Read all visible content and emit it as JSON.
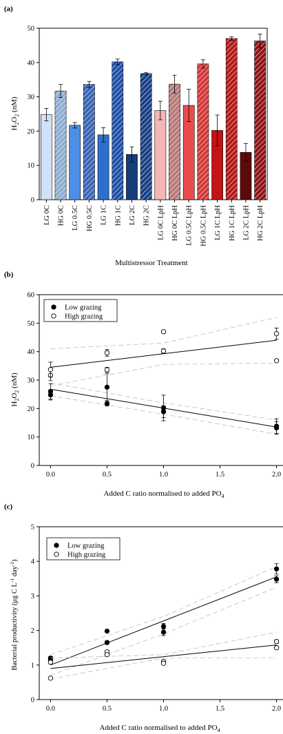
{
  "chart_data": [
    {
      "panel": "(a)",
      "type": "bar",
      "ylabel_main": "H",
      "ylabel_sub1": "2",
      "ylabel_mid": "O",
      "ylabel_sub2": "2",
      "ylabel_tail": " (nM)",
      "xlabel": "Multistressor Treatment",
      "ylim": [
        0,
        50
      ],
      "yticks": [
        "0",
        "10",
        "20",
        "30",
        "40",
        "50"
      ],
      "categories": [
        "LG 0C",
        "HG 0C",
        "LG 0.5C",
        "HG 0.5C",
        "LG 1C",
        "HG 1C",
        "LG 2C",
        "HG 2C",
        "LG 0C LpH",
        "HG 0C LpH",
        "LG 0.5C LpH",
        "HG 0.5C LpH",
        "LG 1C LpH",
        "HG 1C LpH",
        "LG 2C LpH",
        "HG 2C LpH"
      ],
      "values": [
        24.8,
        31.7,
        21.7,
        33.6,
        18.9,
        40.2,
        13.2,
        36.8,
        26.0,
        33.7,
        27.5,
        39.6,
        20.2,
        47.0,
        13.8,
        46.3
      ],
      "errors": [
        1.8,
        1.9,
        0.8,
        0.9,
        2.1,
        0.8,
        2.2,
        0.3,
        2.7,
        2.6,
        4.7,
        1.2,
        4.5,
        0.5,
        2.6,
        2.0
      ],
      "colors": [
        "#cfe2f7",
        "#8eaed1",
        "#4d8fe6",
        "#3b64b3",
        "#2c6fcf",
        "#1e50a8",
        "#173d7a",
        "#183f86",
        "#f6b6b6",
        "#b87a7a",
        "#ea4b4b",
        "#d23838",
        "#c41414",
        "#b41818",
        "#5e0a0a",
        "#8e1414"
      ],
      "hatched": [
        false,
        true,
        false,
        true,
        false,
        true,
        false,
        true,
        false,
        true,
        false,
        true,
        false,
        true,
        false,
        true
      ]
    },
    {
      "panel": "(b)",
      "type": "scatter",
      "ylabel_main": "H",
      "ylabel_sub1": "2",
      "ylabel_mid": "O",
      "ylabel_sub2": "2",
      "ylabel_tail": " (nM)",
      "xlabel_main": "Added C ratio normalised to added PO",
      "xlabel_sub": "4",
      "xlim": [
        -0.1,
        2.1
      ],
      "ylim": [
        0,
        60
      ],
      "xticks": [
        "0.0",
        "0.5",
        "1.0",
        "1.5",
        "2.0"
      ],
      "yticks": [
        "0",
        "10",
        "20",
        "30",
        "40",
        "50",
        "60"
      ],
      "legend_position": "top-left",
      "series": [
        {
          "name": "Low grazing",
          "marker": "filled",
          "points": [
            [
              0,
              24.8
            ],
            [
              0,
              26.0
            ],
            [
              0.5,
              21.7
            ],
            [
              0.5,
              27.5
            ],
            [
              1,
              18.9
            ],
            [
              1,
              20.2
            ],
            [
              2,
              13.2
            ],
            [
              2,
              13.8
            ]
          ],
          "errors": [
            1.8,
            2.7,
            0.8,
            4.7,
            2.1,
            4.5,
            2.2,
            2.6
          ],
          "fit": [
            [
              0,
              26.8
            ],
            [
              2,
              13.5
            ]
          ],
          "ci_upper": [
            [
              0,
              29.0
            ],
            [
              1,
              22.0
            ],
            [
              2,
              16.0
            ]
          ],
          "ci_lower": [
            [
              0,
              24.5
            ],
            [
              1,
              18.0
            ],
            [
              2,
              11.0
            ]
          ]
        },
        {
          "name": "High grazing",
          "marker": "open",
          "points": [
            [
              0,
              31.7
            ],
            [
              0,
              33.7
            ],
            [
              0.5,
              33.6
            ],
            [
              0.5,
              39.6
            ],
            [
              1,
              40.2
            ],
            [
              1,
              47.0
            ],
            [
              2,
              36.8
            ],
            [
              2,
              46.3
            ]
          ],
          "errors": [
            1.9,
            2.6,
            0.9,
            1.2,
            0.8,
            0.5,
            0.3,
            2.0
          ],
          "fit": [
            [
              0,
              34.5
            ],
            [
              2,
              44.0
            ]
          ],
          "ci_upper": [
            [
              0,
              41.0
            ],
            [
              1,
              43.0
            ],
            [
              2,
              52.0
            ]
          ],
          "ci_lower": [
            [
              0,
              28.0
            ],
            [
              1,
              35.5
            ],
            [
              2,
              36.0
            ]
          ]
        }
      ]
    },
    {
      "panel": "(c)",
      "type": "scatter",
      "ylabel_main": "Bacterial productivity (μg C L",
      "ylabel_sup1": "-1",
      "ylabel_mid": " day",
      "ylabel_sup2": "-1",
      "ylabel_tail": ")",
      "xlabel_main": "Added C ratio normalised to added PO",
      "xlabel_sub": "4",
      "xlim": [
        -0.1,
        2.1
      ],
      "ylim": [
        0,
        5
      ],
      "xticks": [
        "0.0",
        "0.5",
        "1.0",
        "1.5",
        "2.0"
      ],
      "yticks": [
        "0",
        "1",
        "2",
        "3",
        "4",
        "5"
      ],
      "legend_position": "top-left",
      "series": [
        {
          "name": "Low grazing",
          "marker": "filled",
          "points": [
            [
              0,
              1.2
            ],
            [
              0,
              1.15
            ],
            [
              0.5,
              1.98
            ],
            [
              0.5,
              1.65
            ],
            [
              1,
              2.12
            ],
            [
              1,
              1.95
            ],
            [
              2,
              3.78
            ],
            [
              2,
              3.48
            ]
          ],
          "errors": [
            0.05,
            0.05,
            0.03,
            0.05,
            0.08,
            0.1,
            0.15,
            0.1
          ],
          "fit": [
            [
              0,
              1.0
            ],
            [
              2,
              3.55
            ]
          ],
          "ci_upper": [
            [
              0,
              1.3
            ],
            [
              1,
              2.4
            ],
            [
              2,
              3.85
            ]
          ],
          "ci_lower": [
            [
              0,
              0.7
            ],
            [
              1,
              1.9
            ],
            [
              2,
              3.25
            ]
          ]
        },
        {
          "name": "High grazing",
          "marker": "open",
          "points": [
            [
              0,
              1.08
            ],
            [
              0,
              0.62
            ],
            [
              0.5,
              1.38
            ],
            [
              0.5,
              1.3
            ],
            [
              1,
              1.1
            ],
            [
              1,
              1.05
            ],
            [
              2,
              1.68
            ],
            [
              2,
              1.5
            ]
          ],
          "errors": [
            0.05,
            0.03,
            0.03,
            0.03,
            0.05,
            0.03,
            0.05,
            0.05
          ],
          "fit": [
            [
              0,
              0.9
            ],
            [
              2,
              1.58
            ]
          ],
          "ci_upper": [
            [
              0,
              1.2
            ],
            [
              1,
              1.3
            ],
            [
              2,
              1.95
            ]
          ],
          "ci_lower": [
            [
              0,
              0.6
            ],
            [
              1,
              1.2
            ],
            [
              2,
              1.2
            ]
          ]
        }
      ]
    }
  ]
}
